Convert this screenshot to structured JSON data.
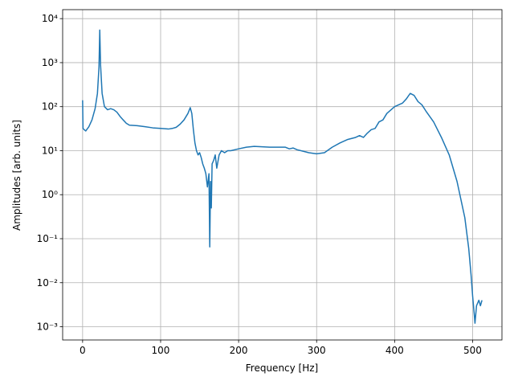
{
  "chart_data": {
    "type": "line",
    "xlabel": "Frequency [Hz]",
    "ylabel": "Amplitudes [arb. units]",
    "log_y": true,
    "grid": true,
    "color": "#1f77b4",
    "x": [
      0,
      0.5,
      2,
      4,
      8,
      12,
      16,
      19,
      21,
      22,
      23,
      25,
      28,
      32,
      36,
      40,
      44,
      48,
      52,
      56,
      60,
      70,
      80,
      90,
      100,
      110,
      115,
      120,
      125,
      130,
      135,
      138,
      140,
      142,
      144,
      146,
      148,
      150,
      152,
      154,
      156,
      158,
      160,
      162,
      163,
      164,
      165,
      166,
      168,
      170,
      172,
      175,
      178,
      182,
      186,
      190,
      200,
      210,
      220,
      240,
      260,
      265,
      270,
      275,
      280,
      290,
      300,
      310,
      320,
      330,
      340,
      350,
      355,
      360,
      365,
      370,
      375,
      380,
      385,
      390,
      400,
      410,
      415,
      420,
      425,
      430,
      435,
      440,
      450,
      460,
      470,
      480,
      490,
      495,
      498,
      500,
      502,
      503,
      505,
      508,
      510,
      512
    ],
    "values": [
      140,
      32,
      30,
      28,
      35,
      50,
      90,
      200,
      800,
      5500,
      900,
      200,
      100,
      85,
      90,
      85,
      75,
      60,
      50,
      42,
      38,
      37,
      35,
      33,
      32,
      31,
      32,
      34,
      40,
      50,
      70,
      95,
      70,
      30,
      15,
      10,
      8,
      9,
      7,
      5,
      4,
      3,
      1.5,
      3,
      0.065,
      2,
      0.5,
      5,
      6,
      8,
      4,
      8,
      10,
      9,
      10,
      10,
      11,
      12,
      12.5,
      12,
      12,
      11,
      11.5,
      10.5,
      10,
      9,
      8.5,
      9,
      12,
      15,
      18,
      20,
      22,
      20,
      25,
      30,
      32,
      45,
      50,
      70,
      100,
      120,
      150,
      200,
      180,
      130,
      110,
      80,
      45,
      20,
      8,
      2,
      0.3,
      0.06,
      0.015,
      0.005,
      0.002,
      0.0012,
      0.003,
      0.004,
      0.003,
      0.004
    ],
    "xlim": [
      -25.6,
      537.6
    ],
    "xticks": [
      0,
      100,
      200,
      300,
      400,
      500
    ],
    "ylim": [
      0.0005,
      16000
    ],
    "yticks": [
      {
        "value": 0.001,
        "label": "10⁻³"
      },
      {
        "value": 0.01,
        "label": "10⁻²"
      },
      {
        "value": 0.1,
        "label": "10⁻¹"
      },
      {
        "value": 1,
        "label": "10⁰"
      },
      {
        "value": 10,
        "label": "10¹"
      },
      {
        "value": 100,
        "label": "10²"
      },
      {
        "value": 1000,
        "label": "10³"
      },
      {
        "value": 10000,
        "label": "10⁴"
      }
    ]
  }
}
